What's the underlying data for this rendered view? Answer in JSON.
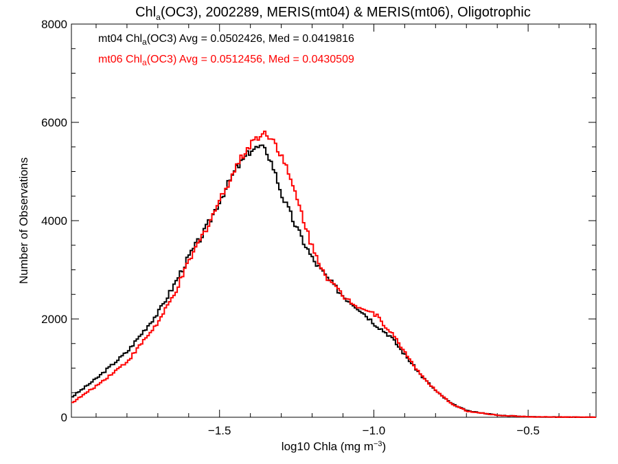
{
  "chart_data": {
    "type": "line",
    "title": {
      "pre": "Chl",
      "sub": "a",
      "post": "(OC3), 2002289, MERIS(mt04) & MERIS(mt06), Oligotrophic"
    },
    "xlabel": {
      "pre": "log10 Chla (mg m",
      "sup": "−3",
      "post": ")"
    },
    "ylabel": "Number of Observations",
    "xlim": [
      -1.98,
      -0.28
    ],
    "ylim": [
      0,
      8000
    ],
    "x_ticks": [
      -1.5,
      -1.0,
      -0.5
    ],
    "x_tick_labels": [
      "−1.5",
      "−1.0",
      "−0.5"
    ],
    "y_ticks": [
      0,
      2000,
      4000,
      6000,
      8000
    ],
    "y_tick_labels": [
      "0",
      "2000",
      "4000",
      "6000",
      "8000"
    ],
    "legend": [
      {
        "pre": "mt04 Chl",
        "sub": "a",
        "post": "(OC3) Avg = 0.0502426, Med = 0.0419816",
        "color": "#000000"
      },
      {
        "pre": "mt06 Chl",
        "sub": "a",
        "post": "(OC3) Avg = 0.0512456, Med = 0.0430509",
        "color": "#ff0000"
      }
    ],
    "series": [
      {
        "color": "#000000",
        "x": [
          -1.98,
          -1.9,
          -1.8,
          -1.7,
          -1.65,
          -1.6,
          -1.55,
          -1.5,
          -1.45,
          -1.4,
          -1.37,
          -1.35,
          -1.33,
          -1.3,
          -1.25,
          -1.2,
          -1.15,
          -1.1,
          -1.05,
          -1.0,
          -0.95,
          -0.9,
          -0.85,
          -0.8,
          -0.75,
          -0.7,
          -0.6,
          -0.5,
          -0.4,
          -0.28
        ],
        "y": [
          420,
          800,
          1350,
          2150,
          2700,
          3300,
          3800,
          4450,
          5050,
          5450,
          5500,
          5400,
          5100,
          4500,
          3800,
          3200,
          2800,
          2450,
          2200,
          1900,
          1650,
          1250,
          850,
          520,
          270,
          130,
          40,
          10,
          3,
          0
        ]
      },
      {
        "color": "#ff0000",
        "x": [
          -1.98,
          -1.9,
          -1.8,
          -1.7,
          -1.65,
          -1.6,
          -1.55,
          -1.5,
          -1.45,
          -1.4,
          -1.37,
          -1.35,
          -1.33,
          -1.3,
          -1.25,
          -1.2,
          -1.15,
          -1.1,
          -1.05,
          -1.0,
          -0.95,
          -0.9,
          -0.85,
          -0.8,
          -0.75,
          -0.7,
          -0.6,
          -0.5,
          -0.4,
          -0.28
        ],
        "y": [
          300,
          650,
          1150,
          1950,
          2500,
          3200,
          3800,
          4450,
          5100,
          5600,
          5750,
          5780,
          5650,
          5300,
          4400,
          3400,
          2800,
          2450,
          2250,
          2100,
          1750,
          1300,
          850,
          520,
          270,
          120,
          40,
          10,
          3,
          0
        ]
      }
    ],
    "grid": false
  }
}
